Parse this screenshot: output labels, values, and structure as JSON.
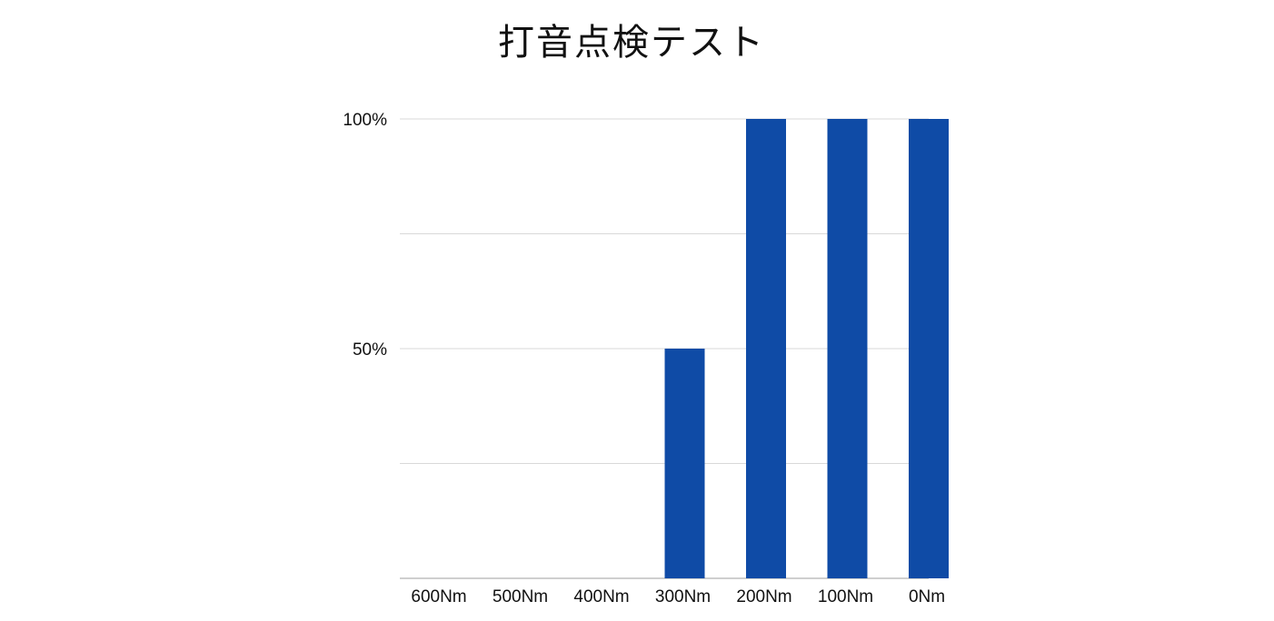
{
  "chart_data": {
    "type": "bar",
    "title": "打音点検テスト",
    "categories": [
      "600Nm",
      "500Nm",
      "400Nm",
      "300Nm",
      "200Nm",
      "100Nm",
      "0Nm"
    ],
    "values": [
      0,
      0,
      0,
      50,
      100,
      100,
      100
    ],
    "ylim": [
      0,
      100
    ],
    "y_ticks": [
      0,
      25,
      50,
      75,
      100
    ],
    "y_tick_labels": [
      "",
      "",
      "50%",
      "",
      "100%"
    ],
    "xlabel": "",
    "ylabel": "",
    "grid": true,
    "legend": "none",
    "colors": {
      "bar": "#0f4ba6",
      "grid": "#d9d9d9",
      "axis": "#bfbfbf"
    }
  }
}
